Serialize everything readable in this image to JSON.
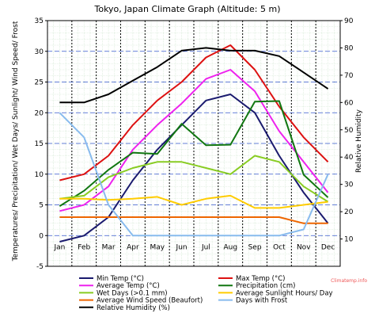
{
  "chart_data": {
    "type": "line",
    "title": "Tokyo, Japan Climate Graph (Altitude: 5 m)",
    "ylabel_left": "Temperatures/ Precipitation/ Wet Days/ Sunlight/ Wind Speed/ Frost",
    "ylabel_right": "Relative Humidity",
    "categories": [
      "Jan",
      "Feb",
      "Mar",
      "Apr",
      "May",
      "Jun",
      "Jul",
      "Aug",
      "Sep",
      "Oct",
      "Nov",
      "Dec"
    ],
    "y_left": {
      "lim": [
        -5,
        35
      ],
      "ticks": [
        -5,
        0,
        5,
        10,
        15,
        20,
        25,
        30,
        35
      ]
    },
    "y_right": {
      "lim": [
        0,
        90
      ],
      "ticks": [
        10,
        20,
        30,
        40,
        50,
        60,
        70,
        80,
        90
      ]
    },
    "grid": true,
    "watermark": "Climatemp.info",
    "colors": {
      "grid": "#cfe6cf",
      "month_divider": "#000000",
      "dashed_blue": "#3355cc"
    },
    "series": [
      {
        "name": "Min Temp (°C)",
        "color": "#1a1a6e",
        "axis": "left",
        "values": [
          -1,
          0,
          3,
          9,
          14,
          18,
          22,
          23,
          20,
          13,
          7,
          2
        ]
      },
      {
        "name": "Max Temp (°C)",
        "color": "#dd1111",
        "axis": "left",
        "values": [
          9,
          10,
          13,
          18,
          22,
          25,
          29,
          31,
          27,
          21,
          16,
          12
        ]
      },
      {
        "name": "Average Temp (°C)",
        "color": "#ee22ee",
        "axis": "left",
        "values": [
          4,
          5,
          8,
          14,
          18,
          21.5,
          25.5,
          27,
          23.5,
          17,
          12,
          7
        ]
      },
      {
        "name": "Precipitation (cm)",
        "color": "#117711",
        "axis": "left",
        "values": [
          4.8,
          7.3,
          10.7,
          13.5,
          13.3,
          18.2,
          14.7,
          14.8,
          21.8,
          21.9,
          9.9,
          6.2
        ]
      },
      {
        "name": "Wet Days (>0.1 mm)",
        "color": "#88cc22",
        "axis": "left",
        "values": [
          6,
          6.5,
          9.5,
          11,
          12,
          12,
          11,
          10,
          13,
          12,
          8,
          5.5
        ]
      },
      {
        "name": "Average Sunlight Hours/ Day",
        "color": "#ffcc00",
        "axis": "left",
        "values": [
          6,
          6,
          5.8,
          6,
          6.3,
          5,
          6,
          6.5,
          4.5,
          4.5,
          5,
          5.5
        ]
      },
      {
        "name": "Average Wind Speed (Beaufort)",
        "color": "#ee6600",
        "axis": "left",
        "values": [
          3,
          3,
          3,
          3,
          3,
          3,
          3,
          3,
          3,
          3,
          2,
          2
        ]
      },
      {
        "name": "Days with Frost",
        "color": "#88bbee",
        "axis": "left",
        "values": [
          20,
          16,
          5,
          0,
          0,
          0,
          0,
          0,
          0,
          0,
          1,
          10
        ]
      },
      {
        "name": "Relative Humidity (%)",
        "color": "#000000",
        "axis": "right",
        "values": [
          60,
          60,
          63,
          68,
          73,
          79,
          80,
          79,
          79,
          77,
          71,
          65
        ]
      }
    ]
  }
}
